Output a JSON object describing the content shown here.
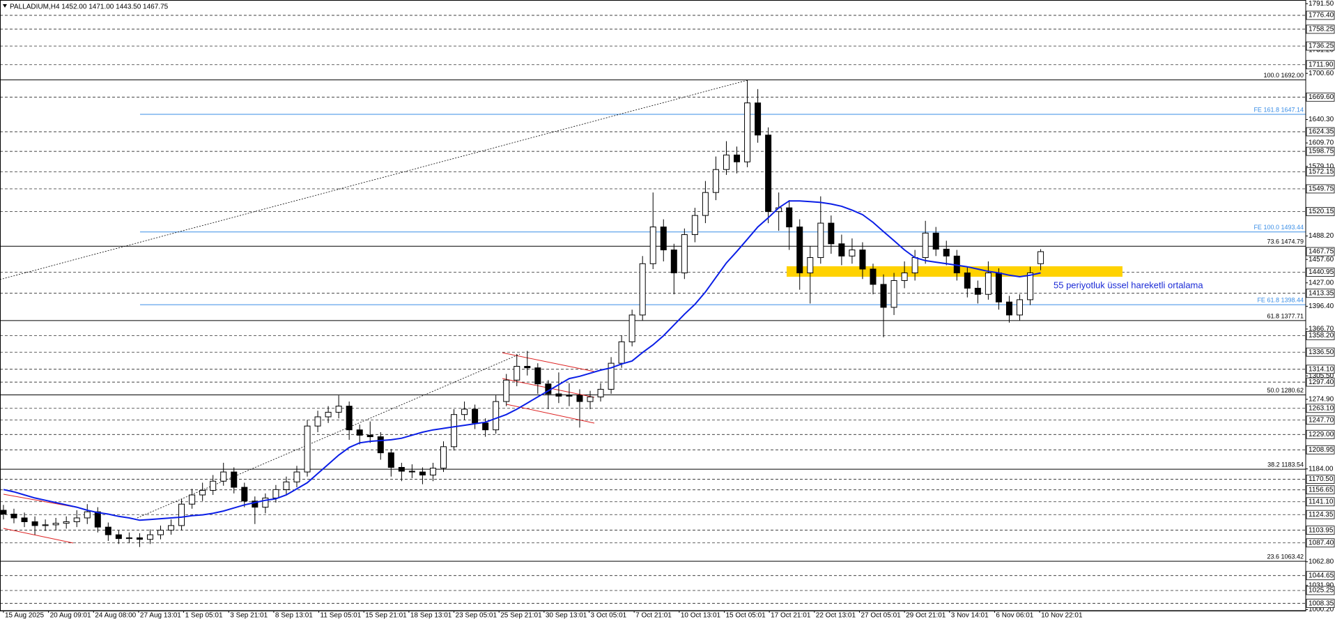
{
  "chart_data": {
    "type": "candlestick",
    "title": "PALLADIUM,H4  1452.00 1471.00 1443.50 1467.75",
    "annotation": "55 periyotluk üssel hareketli ortalama",
    "xlim": [
      -0.33,
      124.3
    ],
    "ylim": [
      998.9,
      1796.4
    ],
    "xticks": [
      {
        "value": 0,
        "label": "15 Aug 2025"
      },
      {
        "value": 4.3,
        "label": "20 Aug 09:01"
      },
      {
        "value": 8.6,
        "label": "24 Aug 08:00"
      },
      {
        "value": 12.9,
        "label": "27 Aug 13:01"
      },
      {
        "value": 17.2,
        "label": "1 Sep 05:01"
      },
      {
        "value": 21.5,
        "label": "3 Sep 21:01"
      },
      {
        "value": 25.8,
        "label": "8 Sep 13:01"
      },
      {
        "value": 30.1,
        "label": "11 Sep 05:01"
      },
      {
        "value": 34.4,
        "label": "15 Sep 21:01"
      },
      {
        "value": 38.7,
        "label": "18 Sep 13:01"
      },
      {
        "value": 43,
        "label": "23 Sep 05:01"
      },
      {
        "value": 47.3,
        "label": "25 Sep 21:01"
      },
      {
        "value": 51.6,
        "label": "30 Sep 13:01"
      },
      {
        "value": 55.9,
        "label": "3 Oct 05:01"
      },
      {
        "value": 60.2,
        "label": "7 Oct 21:01"
      },
      {
        "value": 64.5,
        "label": "10 Oct 13:01"
      },
      {
        "value": 68.8,
        "label": "15 Oct 05:01"
      },
      {
        "value": 73.1,
        "label": "17 Oct 21:01"
      },
      {
        "value": 77.4,
        "label": "22 Oct 13:01"
      },
      {
        "value": 81.7,
        "label": "27 Oct 05:01"
      },
      {
        "value": 86,
        "label": "29 Oct 21:01"
      },
      {
        "value": 90.3,
        "label": "3 Nov 14:01"
      },
      {
        "value": 94.6,
        "label": "6 Nov 06:01"
      },
      {
        "value": 98.9,
        "label": "10 Nov 22:01"
      }
    ],
    "yticks": [
      {
        "value": 1791.5,
        "label": "1791.50"
      },
      {
        "value": 1731.2,
        "label": "1731.20"
      },
      {
        "value": 1700.6,
        "label": "1700.60"
      },
      {
        "value": 1640.3,
        "label": "1640.30"
      },
      {
        "value": 1609.7,
        "label": "1609.70"
      },
      {
        "value": 1579.1,
        "label": "1579.10"
      },
      {
        "value": 1488.2,
        "label": "1488.20"
      },
      {
        "value": 1457.6,
        "label": "1457.60"
      },
      {
        "value": 1427,
        "label": "1427.00"
      },
      {
        "value": 1396.4,
        "label": "1396.40"
      },
      {
        "value": 1366.7,
        "label": "1366.70"
      },
      {
        "value": 1305.5,
        "label": "1305.50"
      },
      {
        "value": 1274.9,
        "label": "1274.90"
      },
      {
        "value": 1184,
        "label": "1184.00"
      },
      {
        "value": 1062.8,
        "label": "1062.80"
      },
      {
        "value": 1031.9,
        "label": "1031.90"
      },
      {
        "value": 1000.2,
        "label": "1000.20"
      }
    ],
    "levels": [
      {
        "value": 1776.4,
        "label": "1776.40"
      },
      1758.25,
      1736.25,
      {
        "value": 1711.9,
        "label": "1711.90"
      },
      {
        "value": 1669.6,
        "label": "1669.60"
      },
      1624.35,
      1598.75,
      1572.15,
      1549.75,
      1520.15,
      1440.95,
      1413.35,
      {
        "value": 1358.2,
        "label": "1358.20"
      },
      {
        "value": 1336.5,
        "label": "1336.50"
      },
      {
        "value": 1314.1,
        "label": "1314.10"
      },
      {
        "value": 1297.4,
        "label": "1297.40"
      },
      {
        "value": 1263.1,
        "label": "1263.10"
      },
      {
        "value": 1247.7,
        "label": "1247.70"
      },
      {
        "value": 1229,
        "label": "1229.00"
      },
      1208.95,
      {
        "value": 1170.5,
        "label": "1170.50"
      },
      1156.65,
      {
        "value": 1141.1,
        "label": "1141.10"
      },
      1124.35,
      1103.95,
      {
        "value": 1087.4,
        "label": "1087.40"
      },
      1044.65,
      1025.25,
      1008.35
    ],
    "current_price": 1467.75,
    "fibo": [
      {
        "value": 1692,
        "label": "100.0 1692.00"
      },
      {
        "value": 1474.79,
        "label": "73.6 1474.79"
      },
      {
        "value": 1377.71,
        "label": "61.8 1377.71"
      },
      {
        "value": 1280.62,
        "label": "50.0 1280.62"
      },
      {
        "value": 1183.54,
        "label": "38.2 1183.54"
      },
      {
        "value": 1063.42,
        "label": "23.6 1063.42"
      }
    ],
    "fibo_color": "#000000",
    "fibo_ext": [
      {
        "value": 1647.14,
        "label": "FE 161.8 1647.14"
      },
      {
        "value": 1493.44,
        "label": "FE 100.0 1493.44"
      },
      {
        "value": 1398.44,
        "label": "FE 61.8 1398.44"
      }
    ],
    "fibo_ext_color": "#3a8ee6",
    "candles": {
      "up_color": "#ffffff",
      "down_color": "#000000",
      "wick_color": "#000000",
      "open": [
        1130,
        1125,
        1120,
        1115,
        1110,
        1111,
        1113,
        1115,
        1120,
        1128,
        1108,
        1098,
        1093,
        1094,
        1092,
        1098,
        1104,
        1110,
        1138,
        1150,
        1156,
        1168,
        1180,
        1160,
        1142,
        1134,
        1146,
        1157,
        1167,
        1180,
        1240,
        1252,
        1258,
        1266,
        1235,
        1228,
        1226,
        1205,
        1186,
        1181,
        1180,
        1176,
        1185,
        1213,
        1255,
        1262,
        1244,
        1235,
        1272,
        1300,
        1318,
        1316,
        1295,
        1282,
        1279,
        1280,
        1272,
        1278,
        1288,
        1322,
        1350,
        1385,
        1452,
        1500,
        1470,
        1440,
        1490,
        1515,
        1545,
        1575,
        1594,
        1585,
        1662,
        1620,
        1520,
        1525,
        1500,
        1440,
        1460,
        1505,
        1478,
        1462,
        1470,
        1445,
        1425,
        1395,
        1430,
        1440,
        1460,
        1492,
        1471,
        1462,
        1440,
        1420,
        1412,
        1440,
        1402,
        1385,
        1405,
        1452
      ],
      "high": [
        1137,
        1132,
        1127,
        1122,
        1118,
        1120,
        1122,
        1130,
        1138,
        1134,
        1114,
        1104,
        1101,
        1100,
        1105,
        1110,
        1118,
        1145,
        1158,
        1166,
        1176,
        1192,
        1186,
        1166,
        1148,
        1152,
        1163,
        1174,
        1188,
        1248,
        1260,
        1266,
        1280,
        1272,
        1242,
        1246,
        1232,
        1210,
        1192,
        1190,
        1186,
        1192,
        1220,
        1262,
        1272,
        1268,
        1250,
        1280,
        1308,
        1334,
        1338,
        1322,
        1300,
        1310,
        1296,
        1288,
        1286,
        1296,
        1330,
        1358,
        1392,
        1462,
        1545,
        1510,
        1478,
        1498,
        1525,
        1560,
        1592,
        1612,
        1605,
        1692,
        1680,
        1630,
        1545,
        1535,
        1510,
        1475,
        1540,
        1515,
        1490,
        1485,
        1480,
        1452,
        1438,
        1440,
        1455,
        1470,
        1508,
        1500,
        1482,
        1470,
        1448,
        1430,
        1455,
        1446,
        1410,
        1412,
        1448,
        1471
      ],
      "low": [
        1118,
        1113,
        1108,
        1098,
        1103,
        1104,
        1106,
        1108,
        1112,
        1101,
        1090,
        1086,
        1087,
        1082,
        1086,
        1092,
        1098,
        1104,
        1132,
        1142,
        1150,
        1162,
        1152,
        1134,
        1112,
        1126,
        1140,
        1150,
        1160,
        1174,
        1232,
        1244,
        1250,
        1222,
        1216,
        1218,
        1196,
        1174,
        1168,
        1172,
        1164,
        1168,
        1180,
        1208,
        1248,
        1236,
        1226,
        1230,
        1266,
        1292,
        1306,
        1282,
        1262,
        1270,
        1266,
        1238,
        1262,
        1272,
        1282,
        1316,
        1344,
        1378,
        1445,
        1455,
        1412,
        1432,
        1480,
        1505,
        1535,
        1568,
        1570,
        1578,
        1610,
        1505,
        1495,
        1470,
        1418,
        1400,
        1452,
        1465,
        1450,
        1452,
        1432,
        1412,
        1356,
        1385,
        1420,
        1430,
        1452,
        1462,
        1450,
        1430,
        1408,
        1400,
        1405,
        1392,
        1375,
        1378,
        1398,
        1443.5
      ],
      "close": [
        1125,
        1120,
        1115,
        1110,
        1111,
        1113,
        1115,
        1120,
        1128,
        1108,
        1098,
        1093,
        1094,
        1092,
        1098,
        1104,
        1110,
        1138,
        1150,
        1156,
        1168,
        1180,
        1160,
        1142,
        1134,
        1146,
        1157,
        1167,
        1180,
        1240,
        1252,
        1258,
        1266,
        1235,
        1228,
        1226,
        1205,
        1186,
        1181,
        1180,
        1176,
        1185,
        1213,
        1255,
        1262,
        1244,
        1235,
        1272,
        1300,
        1318,
        1316,
        1295,
        1282,
        1279,
        1280,
        1272,
        1278,
        1288,
        1322,
        1350,
        1385,
        1452,
        1500,
        1470,
        1440,
        1490,
        1515,
        1545,
        1575,
        1594,
        1585,
        1662,
        1620,
        1520,
        1525,
        1500,
        1440,
        1460,
        1505,
        1478,
        1462,
        1470,
        1445,
        1425,
        1395,
        1430,
        1440,
        1460,
        1492,
        1471,
        1462,
        1440,
        1420,
        1412,
        1440,
        1402,
        1385,
        1405,
        1440,
        1467.75
      ]
    },
    "ema": {
      "color": "#0a1ee6",
      "values": [
        1157,
        1154,
        1150,
        1146,
        1143,
        1140,
        1137,
        1134,
        1130,
        1127,
        1125,
        1122,
        1120,
        1117,
        1118,
        1119,
        1120,
        1121,
        1123,
        1124,
        1126,
        1129,
        1133,
        1137,
        1140,
        1143,
        1145,
        1150,
        1158,
        1166,
        1178,
        1190,
        1202,
        1212,
        1218,
        1220,
        1221,
        1222,
        1224,
        1228,
        1232,
        1235,
        1237,
        1239,
        1241,
        1243,
        1245,
        1250,
        1255,
        1262,
        1270,
        1278,
        1286,
        1294,
        1302,
        1305,
        1309,
        1313,
        1316,
        1321,
        1325,
        1336,
        1346,
        1358,
        1372,
        1386,
        1399,
        1415,
        1434,
        1453,
        1468,
        1484,
        1500,
        1512,
        1525,
        1534,
        1534,
        1533,
        1532,
        1530,
        1527,
        1522,
        1516,
        1506,
        1494,
        1482,
        1470,
        1460,
        1456,
        1454,
        1452,
        1450,
        1448,
        1445,
        1442,
        1440,
        1437,
        1435,
        1437,
        1440
      ]
    }
  }
}
